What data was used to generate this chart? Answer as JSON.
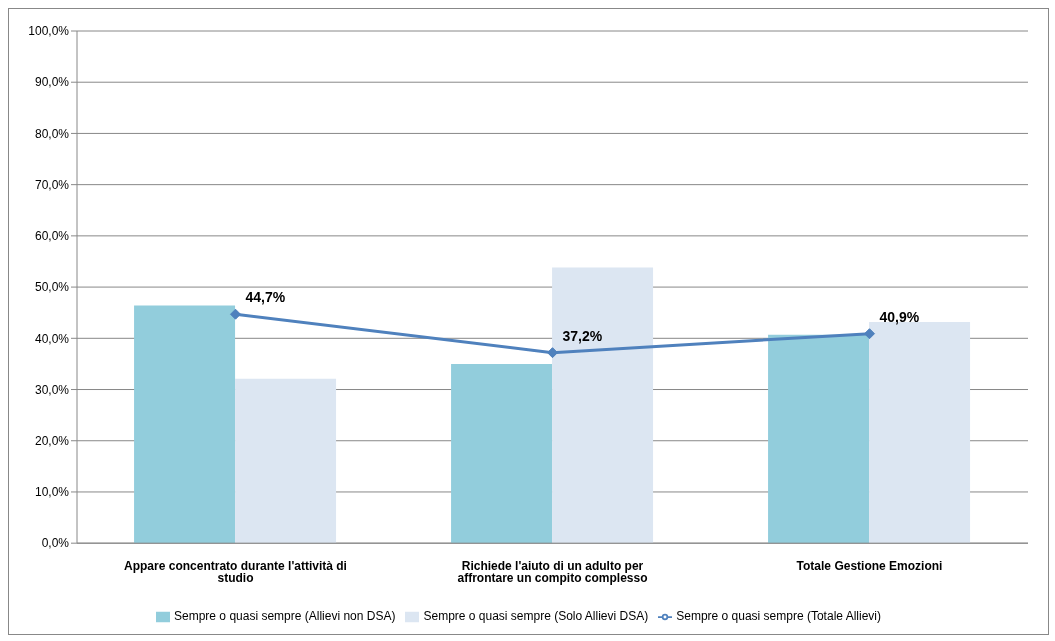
{
  "chart_data": {
    "type": "bar",
    "categories": [
      "Appare concentrato durante l'attività di studio",
      "Richiede l'aiuto di un adulto per affrontare un compito  complesso",
      "Totale Gestione Emozioni"
    ],
    "series": [
      {
        "name": "Sempre o quasi sempre (Allievi non DSA)",
        "color": "#92cddc",
        "values": [
          46.4,
          35.0,
          40.7
        ]
      },
      {
        "name": "Sempre o quasi sempre (Solo Allievi DSA)",
        "color": "#dce6f2",
        "values": [
          32.1,
          53.8,
          43.2
        ]
      },
      {
        "name": "Sempre o quasi sempre (Totale Allievi)",
        "type": "line",
        "color": "#4f81bd",
        "marker": "diamond",
        "values": [
          44.7,
          37.2,
          40.9
        ],
        "value_labels": [
          "44,7%",
          "37,2%",
          "40,9%"
        ]
      }
    ],
    "ylim": [
      0,
      100
    ],
    "yticks": [
      {
        "value": 0,
        "label": "0,0%"
      },
      {
        "value": 10,
        "label": "10,0%"
      },
      {
        "value": 20,
        "label": "20,0%"
      },
      {
        "value": 30,
        "label": "30,0%"
      },
      {
        "value": 40,
        "label": "40,0%"
      },
      {
        "value": 50,
        "label": "50,0%"
      },
      {
        "value": 60,
        "label": "60,0%"
      },
      {
        "value": 70,
        "label": "70,0%"
      },
      {
        "value": 80,
        "label": "80,0%"
      },
      {
        "value": 90,
        "label": "90,0%"
      },
      {
        "value": 100,
        "label": "100,0%"
      }
    ],
    "grid": "y",
    "legend": "bottom"
  }
}
